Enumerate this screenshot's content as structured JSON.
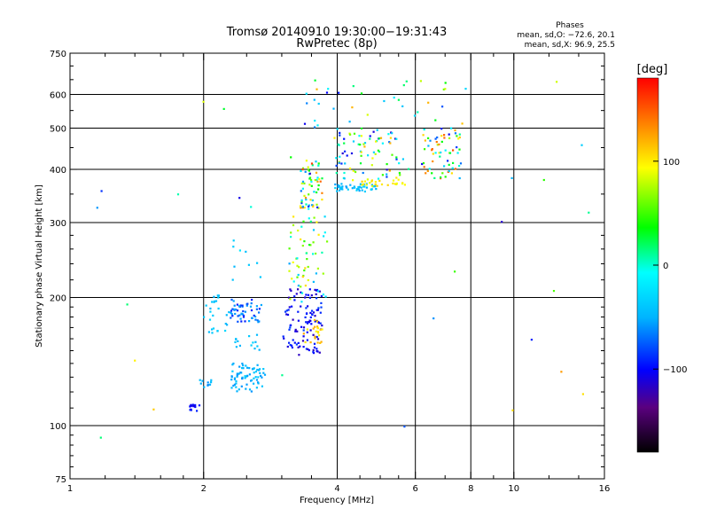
{
  "chart_data": {
    "type": "scatter",
    "title": "Tromsø 20140910 19:30:00−19:31:43",
    "subtitle": "RwPretec (8p)",
    "annotation": {
      "heading": "Phases",
      "line1": "mean, sd,O: −72.6, 20.1",
      "line2": "mean, sd,X:  96.9, 25.5"
    },
    "xlabel": "Frequency [MHz]",
    "ylabel": "Stationary phase Virtual Height [km]",
    "x_scale": "log",
    "y_scale": "log",
    "xlim": [
      1,
      16
    ],
    "ylim": [
      75,
      750
    ],
    "x_ticks": [
      1,
      2,
      4,
      6,
      8,
      10,
      16
    ],
    "x_tick_labels": [
      "1",
      "2",
      "4",
      "6",
      "8",
      "10",
      "16"
    ],
    "y_ticks": [
      75,
      100,
      200,
      300,
      400,
      500,
      600,
      750
    ],
    "y_tick_labels": [
      "75",
      "100",
      "200",
      "300",
      "400",
      "500",
      "600",
      "750"
    ],
    "x_grid": [
      2,
      4,
      6,
      8,
      10
    ],
    "y_grid": [
      100,
      200,
      300,
      400,
      500,
      600
    ],
    "grid": true,
    "colorbar": {
      "label": "[deg]",
      "range": [
        -180,
        180
      ],
      "ticks": [
        100,
        0,
        -100
      ],
      "tick_labels": [
        "100",
        "0",
        "−100"
      ],
      "colors": [
        "#000000",
        "#5a007f",
        "#0000ff",
        "#00b4ff",
        "#00ffff",
        "#00ff00",
        "#ffff00",
        "#ff8000",
        "#ff0000"
      ]
    },
    "clusters": [
      {
        "name": "",
        "x": [
          1.85,
          1.97
        ],
        "y": [
          108,
          112
        ],
        "phase": [
          -110,
          -90
        ],
        "count": 14
      },
      {
        "name": "",
        "x": [
          1.95,
          2.08
        ],
        "y": [
          123,
          129
        ],
        "phase": [
          -70,
          -40
        ],
        "count": 10
      },
      {
        "name": "",
        "x": [
          2.05,
          2.2
        ],
        "y": [
          195,
          203
        ],
        "phase": [
          -50,
          -30
        ],
        "count": 8
      },
      {
        "name": "",
        "x": [
          2.0,
          2.3
        ],
        "y": [
          165,
          195
        ],
        "phase": [
          -50,
          -30
        ],
        "count": 18
      },
      {
        "name": "",
        "x": [
          2.3,
          2.7
        ],
        "y": [
          175,
          198
        ],
        "phase": [
          -95,
          -50
        ],
        "count": 55
      },
      {
        "name": "",
        "x": [
          2.3,
          2.75
        ],
        "y": [
          120,
          140
        ],
        "phase": [
          -60,
          -35
        ],
        "count": 70
      },
      {
        "name": "",
        "x": [
          2.35,
          2.7
        ],
        "y": [
          150,
          165
        ],
        "phase": [
          -50,
          -30
        ],
        "count": 14
      },
      {
        "name": "",
        "x": [
          2.25,
          2.9
        ],
        "y": [
          220,
          280
        ],
        "phase": [
          -50,
          -30
        ],
        "count": 8
      },
      {
        "name": "",
        "x": [
          3.0,
          3.7
        ],
        "y": [
          145,
          210
        ],
        "phase": [
          -120,
          -80
        ],
        "count": 110
      },
      {
        "name": "",
        "x": [
          3.35,
          3.7
        ],
        "y": [
          155,
          180
        ],
        "phase": [
          95,
          125
        ],
        "count": 22
      },
      {
        "name": "",
        "x": [
          3.1,
          3.8
        ],
        "y": [
          195,
          310
        ],
        "phase": [
          -60,
          110
        ],
        "count": 60
      },
      {
        "name": "",
        "x": [
          3.3,
          3.7
        ],
        "y": [
          320,
          420
        ],
        "phase": [
          -120,
          160
        ],
        "count": 65
      },
      {
        "name": "",
        "x": [
          3.95,
          4.9
        ],
        "y": [
          355,
          370
        ],
        "phase": [
          -60,
          -30
        ],
        "count": 45
      },
      {
        "name": "",
        "x": [
          3.9,
          5.8
        ],
        "y": [
          375,
          500
        ],
        "phase": [
          -120,
          130
        ],
        "count": 85
      },
      {
        "name": "",
        "x": [
          4.5,
          5.7
        ],
        "y": [
          365,
          380
        ],
        "phase": [
          85,
          115
        ],
        "count": 25
      },
      {
        "name": "",
        "x": [
          6.2,
          7.6
        ],
        "y": [
          380,
          500
        ],
        "phase": [
          -110,
          160
        ],
        "count": 65
      },
      {
        "name": "",
        "x": [
          3.4,
          7.8
        ],
        "y": [
          500,
          650
        ],
        "phase": [
          -100,
          120
        ],
        "count": 35
      },
      {
        "name": "",
        "x": [
          1.0,
          16.0
        ],
        "y": [
          85,
          650
        ],
        "phase": [
          -120,
          130
        ],
        "count": 30
      }
    ]
  }
}
